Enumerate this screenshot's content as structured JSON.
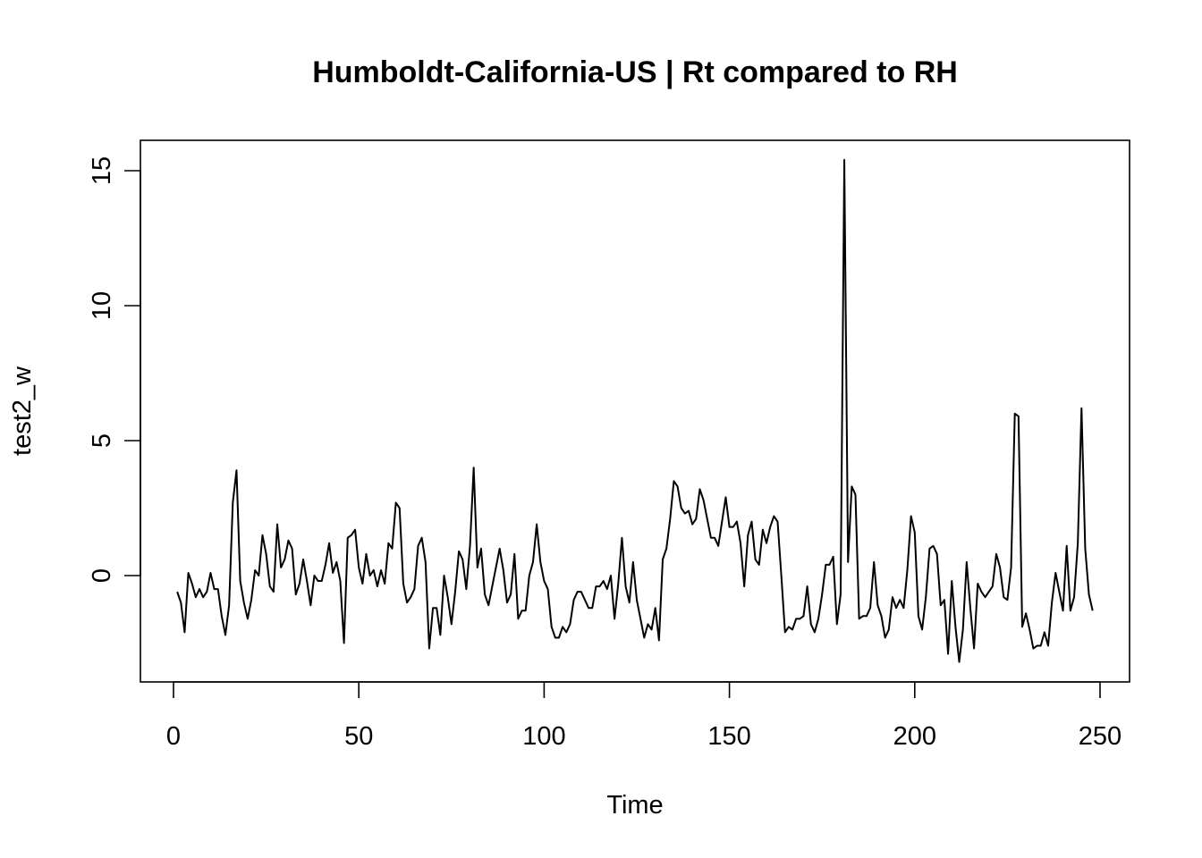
{
  "chart_data": {
    "type": "line",
    "title": "Humboldt-California-US | Rt compared to RH",
    "xlabel": "Time",
    "ylabel": "test2_w",
    "xlim": [
      1,
      248
    ],
    "ylim": [
      -3.2,
      15.4
    ],
    "xticks": [
      0,
      50,
      100,
      150,
      200,
      250
    ],
    "xtick_labels": [
      "0",
      "50",
      "100",
      "150",
      "200",
      "250"
    ],
    "yticks": [
      0,
      5,
      10,
      15
    ],
    "ytick_labels": [
      "0",
      "5",
      "10",
      "15"
    ],
    "grid": false,
    "legend": "none",
    "line_color": "#000000",
    "series": [
      {
        "x_start": 1,
        "x_step": 1,
        "values": [
          -0.6,
          -1.0,
          -2.1,
          0.1,
          -0.3,
          -0.8,
          -0.5,
          -0.8,
          -0.6,
          0.1,
          -0.5,
          -0.5,
          -1.5,
          -2.2,
          -1.1,
          2.7,
          3.9,
          -0.2,
          -1.0,
          -1.6,
          -0.9,
          0.2,
          0.0,
          1.5,
          0.8,
          -0.4,
          -0.6,
          1.9,
          0.3,
          0.6,
          1.3,
          1.0,
          -0.7,
          -0.3,
          0.6,
          -0.2,
          -1.1,
          0.0,
          -0.2,
          -0.2,
          0.4,
          1.2,
          0.1,
          0.5,
          -0.2,
          -2.5,
          1.4,
          1.5,
          1.7,
          0.3,
          -0.3,
          0.8,
          0.0,
          0.2,
          -0.4,
          0.2,
          -0.3,
          1.2,
          1.0,
          2.7,
          2.5,
          -0.3,
          -1.0,
          -0.8,
          -0.5,
          1.1,
          1.4,
          0.5,
          -2.7,
          -1.2,
          -1.2,
          -2.2,
          0.0,
          -0.8,
          -1.8,
          -0.6,
          0.9,
          0.6,
          -0.5,
          1.1,
          4.0,
          0.3,
          1.0,
          -0.7,
          -1.1,
          -0.4,
          0.3,
          1.0,
          0.2,
          -1.0,
          -0.7,
          0.8,
          -1.6,
          -1.3,
          -1.3,
          0.0,
          0.5,
          1.9,
          0.5,
          -0.2,
          -0.5,
          -1.9,
          -2.3,
          -2.3,
          -1.9,
          -2.1,
          -1.8,
          -0.9,
          -0.6,
          -0.6,
          -0.9,
          -1.2,
          -1.2,
          -0.4,
          -0.4,
          -0.2,
          -0.5,
          0.0,
          -1.6,
          -0.3,
          1.4,
          -0.4,
          -1.0,
          0.5,
          -0.9,
          -1.6,
          -2.3,
          -1.8,
          -2.0,
          -1.2,
          -2.4,
          0.6,
          1.0,
          2.1,
          3.5,
          3.3,
          2.5,
          2.3,
          2.4,
          1.9,
          2.1,
          3.2,
          2.8,
          2.1,
          1.4,
          1.4,
          1.1,
          2.0,
          2.9,
          1.8,
          1.8,
          2.0,
          1.2,
          -0.4,
          1.5,
          2.0,
          0.6,
          0.4,
          1.7,
          1.2,
          1.8,
          2.2,
          2.0,
          0.0,
          -2.1,
          -1.9,
          -2.0,
          -1.6,
          -1.6,
          -1.5,
          -0.4,
          -1.8,
          -2.1,
          -1.6,
          -0.7,
          0.4,
          0.4,
          0.7,
          -1.8,
          -0.7,
          15.4,
          0.5,
          3.3,
          3.0,
          -1.6,
          -1.5,
          -1.5,
          -1.2,
          0.5,
          -1.1,
          -1.5,
          -2.3,
          -2.0,
          -0.8,
          -1.2,
          -0.9,
          -1.2,
          0.2,
          2.2,
          1.6,
          -1.5,
          -2.0,
          -0.8,
          1.0,
          1.1,
          0.8,
          -1.1,
          -0.9,
          -2.9,
          -0.2,
          -1.9,
          -3.2,
          -2.0,
          0.5,
          -1.2,
          -2.7,
          -0.3,
          -0.6,
          -0.8,
          -0.6,
          -0.4,
          0.8,
          0.3,
          -0.8,
          -0.9,
          0.3,
          6.0,
          5.9,
          -1.9,
          -1.4,
          -2.0,
          -2.7,
          -2.6,
          -2.6,
          -2.1,
          -2.6,
          -1.0,
          0.1,
          -0.6,
          -1.3,
          1.1,
          -1.3,
          -0.8,
          1.2,
          6.2,
          1.0,
          -0.7,
          -1.3
        ]
      }
    ]
  }
}
